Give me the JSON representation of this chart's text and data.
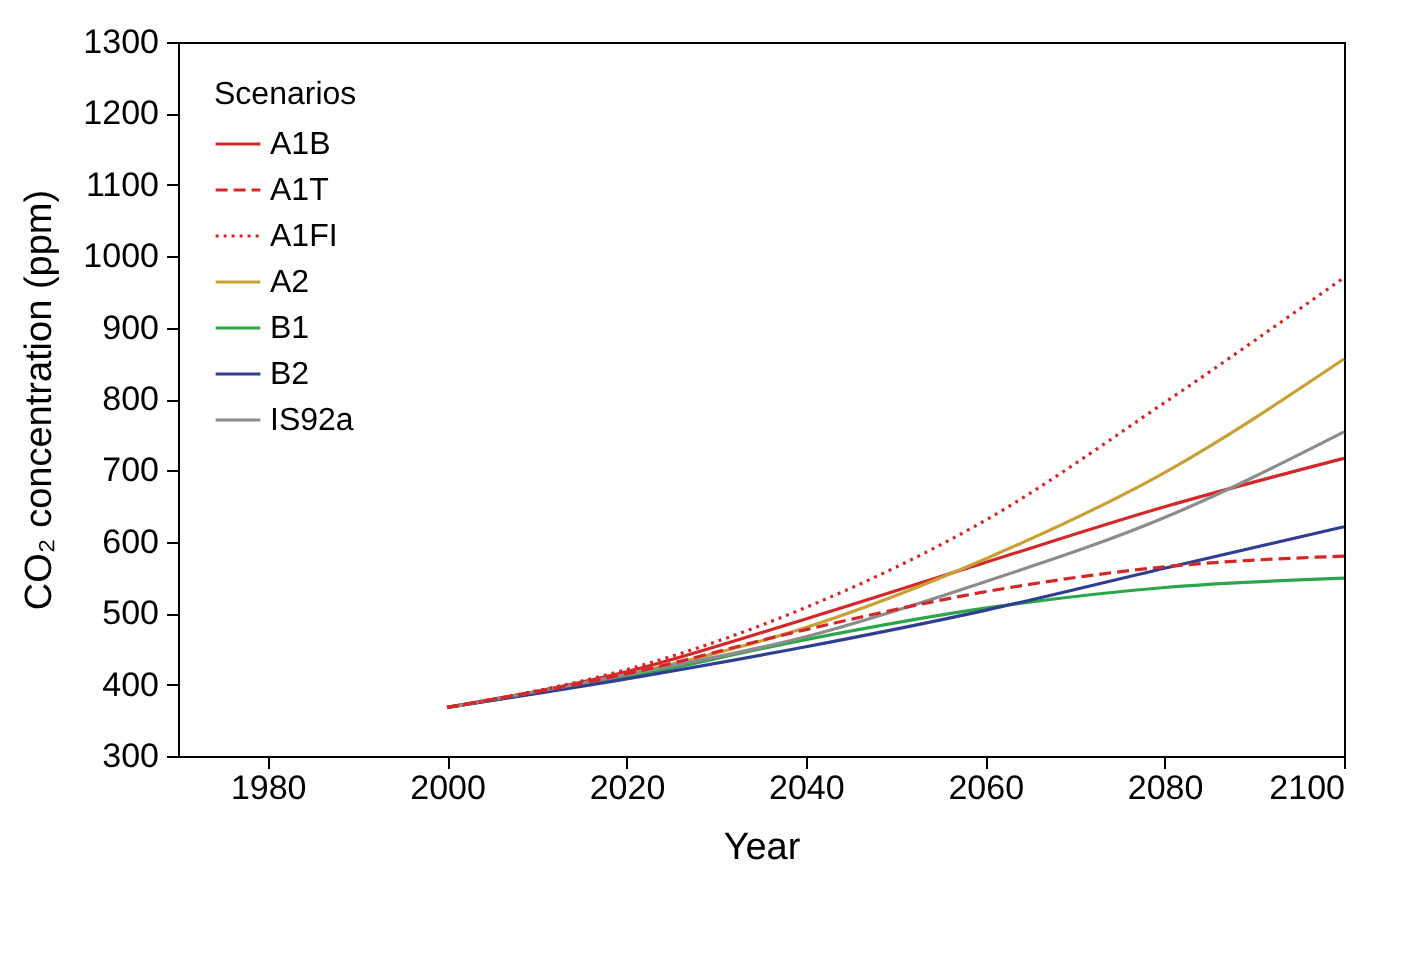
{
  "chart_data": {
    "type": "line",
    "xlabel": "Year",
    "ylabel": "CO₂ concentration (ppm)",
    "legend_title": "Scenarios",
    "legend": "top left",
    "grid": false,
    "x": [
      2000,
      2020,
      2040,
      2060,
      2080,
      2100
    ],
    "series": [
      {
        "name": "A1B",
        "color": "#d62728",
        "line_style": "solid",
        "values": [
          368,
          418,
          492,
          571,
          649,
          717
        ]
      },
      {
        "name": "A1T",
        "color": "#d62728",
        "line_style": "dashed",
        "values": [
          368,
          415,
          477,
          530,
          565,
          580
        ]
      },
      {
        "name": "A1FI",
        "color": "#d62728",
        "line_style": "dotted",
        "values": [
          368,
          421,
          508,
          630,
          795,
          970
        ]
      },
      {
        "name": "A2",
        "color": "#c9a033",
        "line_style": "solid",
        "values": [
          368,
          414,
          480,
          576,
          697,
          856
        ]
      },
      {
        "name": "B1",
        "color": "#2ca64a",
        "line_style": "solid",
        "values": [
          368,
          410,
          463,
          507,
          536,
          549
        ]
      },
      {
        "name": "B2",
        "color": "#2f3e92",
        "line_style": "solid",
        "values": [
          368,
          408,
          453,
          504,
          563,
          621
        ]
      },
      {
        "name": "IS92a",
        "color": "#8c8c8c",
        "line_style": "solid",
        "values": [
          368,
          414,
          467,
          544,
          634,
          754
        ]
      }
    ],
    "xlim": [
      1970,
      2100
    ],
    "xticks": [
      1980,
      2000,
      2020,
      2040,
      2060,
      2080,
      2100
    ],
    "ylim": [
      300,
      1300
    ],
    "yticks": [
      300,
      400,
      500,
      600,
      700,
      800,
      900,
      1000,
      1100,
      1200,
      1300
    ]
  }
}
